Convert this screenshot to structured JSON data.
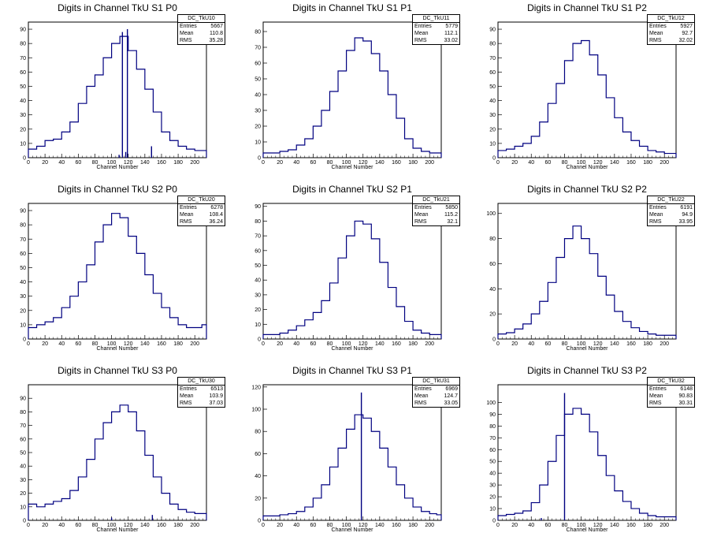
{
  "x_axis_label": "Channel Number",
  "panels": [
    {
      "id": "s1p0",
      "title": "Digits in Channel TkU S1 P0",
      "stats_name": "DC_TkU10",
      "entries": "5667",
      "mean": "110.8",
      "rms": "35.28"
    },
    {
      "id": "s1p1",
      "title": "Digits in Channel TkU S1 P1",
      "stats_name": "DC_TkU11",
      "entries": "5779",
      "mean": "112.1",
      "rms": "33.02"
    },
    {
      "id": "s1p2",
      "title": "Digits in Channel TkU S1 P2",
      "stats_name": "DC_TkU12",
      "entries": "5927",
      "mean": "92.7",
      "rms": "32.02"
    },
    {
      "id": "s2p0",
      "title": "Digits in Channel TkU S2 P0",
      "stats_name": "DC_TkU20",
      "entries": "6278",
      "mean": "108.4",
      "rms": "36.24"
    },
    {
      "id": "s2p1",
      "title": "Digits in Channel TkU S2 P1",
      "stats_name": "DC_TkU21",
      "entries": "5850",
      "mean": "115.2",
      "rms": "32.1"
    },
    {
      "id": "s2p2",
      "title": "Digits in Channel TkU S2 P2",
      "stats_name": "DC_TkU22",
      "entries": "6191",
      "mean": "94.9",
      "rms": "33.95"
    },
    {
      "id": "s3p0",
      "title": "Digits in Channel TkU S3 P0",
      "stats_name": "DC_TkU30",
      "entries": "6513",
      "mean": "103.9",
      "rms": "37.03"
    },
    {
      "id": "s3p1",
      "title": "Digits in Channel TkU S3 P1",
      "stats_name": "DC_TkU31",
      "entries": "6969",
      "mean": "124.7",
      "rms": "33.05"
    },
    {
      "id": "s3p2",
      "title": "Digits in Channel TkU S3 P2",
      "stats_name": "DC_TkU32",
      "entries": "6148",
      "mean": "90.83",
      "rms": "30.31"
    }
  ],
  "stat_labels": {
    "entries": "Entries",
    "mean": "Mean",
    "rms": "RMS"
  },
  "chart_data": [
    {
      "type": "histogram",
      "title": "Digits in Channel TkU S1 P0",
      "xlabel": "Channel Number",
      "ylabel": "",
      "xlim": [
        0,
        214
      ],
      "ylim": [
        0,
        95
      ],
      "x_ticks": [
        0,
        20,
        40,
        60,
        80,
        100,
        120,
        140,
        160,
        180,
        200
      ],
      "y_ticks": [
        0,
        10,
        20,
        30,
        40,
        50,
        60,
        70,
        80,
        90
      ],
      "bin_centers": [
        5,
        15,
        25,
        35,
        45,
        55,
        65,
        75,
        85,
        95,
        105,
        115,
        125,
        135,
        145,
        155,
        165,
        175,
        185,
        195,
        205,
        212
      ],
      "values": [
        6,
        8,
        12,
        13,
        18,
        25,
        38,
        50,
        58,
        70,
        80,
        85,
        75,
        62,
        48,
        32,
        18,
        12,
        8,
        6,
        5,
        5
      ],
      "spikes": [
        {
          "x": 109,
          "y": 2
        },
        {
          "x": 113,
          "y": 88
        },
        {
          "x": 117,
          "y": 4
        },
        {
          "x": 119,
          "y": 90
        },
        {
          "x": 148,
          "y": 8
        }
      ],
      "color": "#000080"
    },
    {
      "type": "histogram",
      "title": "Digits in Channel TkU S1 P1",
      "xlabel": "Channel Number",
      "ylabel": "",
      "xlim": [
        0,
        214
      ],
      "ylim": [
        0,
        86
      ],
      "x_ticks": [
        0,
        20,
        40,
        60,
        80,
        100,
        120,
        140,
        160,
        180,
        200
      ],
      "y_ticks": [
        0,
        10,
        20,
        30,
        40,
        50,
        60,
        70,
        80
      ],
      "bin_centers": [
        5,
        15,
        25,
        35,
        45,
        55,
        65,
        75,
        85,
        95,
        105,
        115,
        125,
        135,
        145,
        155,
        165,
        175,
        185,
        195,
        205,
        212
      ],
      "values": [
        3,
        3,
        4,
        5,
        8,
        12,
        20,
        30,
        42,
        55,
        68,
        76,
        74,
        66,
        55,
        40,
        25,
        12,
        6,
        4,
        3,
        3
      ],
      "spikes": [],
      "color": "#000080"
    },
    {
      "type": "histogram",
      "title": "Digits in Channel TkU S1 P2",
      "xlabel": "Channel Number",
      "ylabel": "",
      "xlim": [
        0,
        214
      ],
      "ylim": [
        0,
        95
      ],
      "x_ticks": [
        0,
        20,
        40,
        60,
        80,
        100,
        120,
        140,
        160,
        180,
        200
      ],
      "y_ticks": [
        0,
        10,
        20,
        30,
        40,
        50,
        60,
        70,
        80,
        90
      ],
      "bin_centers": [
        5,
        15,
        25,
        35,
        45,
        55,
        65,
        75,
        85,
        95,
        105,
        115,
        125,
        135,
        145,
        155,
        165,
        175,
        185,
        195,
        205,
        212
      ],
      "values": [
        5,
        6,
        8,
        10,
        15,
        25,
        38,
        52,
        68,
        80,
        82,
        72,
        58,
        42,
        28,
        18,
        12,
        8,
        5,
        4,
        3,
        3
      ],
      "spikes": [],
      "color": "#000080"
    },
    {
      "type": "histogram",
      "title": "Digits in Channel TkU S2 P0",
      "xlabel": "Channel Number",
      "ylabel": "",
      "xlim": [
        0,
        214
      ],
      "ylim": [
        0,
        95
      ],
      "x_ticks": [
        0,
        20,
        40,
        60,
        80,
        100,
        120,
        140,
        160,
        180,
        200
      ],
      "y_ticks": [
        0,
        10,
        20,
        30,
        40,
        50,
        60,
        70,
        80,
        90
      ],
      "bin_centers": [
        5,
        15,
        25,
        35,
        45,
        55,
        65,
        75,
        85,
        95,
        105,
        115,
        125,
        135,
        145,
        155,
        165,
        175,
        185,
        195,
        205,
        212
      ],
      "values": [
        8,
        10,
        12,
        15,
        22,
        30,
        40,
        52,
        68,
        80,
        88,
        85,
        72,
        60,
        45,
        32,
        22,
        15,
        10,
        8,
        8,
        10
      ],
      "spikes": [],
      "color": "#000080"
    },
    {
      "type": "histogram",
      "title": "Digits in Channel TkU S2 P1",
      "xlabel": "Channel Number",
      "ylabel": "",
      "xlim": [
        0,
        214
      ],
      "ylim": [
        0,
        92
      ],
      "x_ticks": [
        0,
        20,
        40,
        60,
        80,
        100,
        120,
        140,
        160,
        180,
        200
      ],
      "y_ticks": [
        0,
        10,
        20,
        30,
        40,
        50,
        60,
        70,
        80,
        90
      ],
      "bin_centers": [
        5,
        15,
        25,
        35,
        45,
        55,
        65,
        75,
        85,
        95,
        105,
        115,
        125,
        135,
        145,
        155,
        165,
        175,
        185,
        195,
        205,
        212
      ],
      "values": [
        3,
        3,
        4,
        6,
        9,
        13,
        18,
        26,
        38,
        55,
        70,
        80,
        78,
        68,
        52,
        35,
        22,
        12,
        6,
        4,
        3,
        3
      ],
      "spikes": [],
      "color": "#000080"
    },
    {
      "type": "histogram",
      "title": "Digits in Channel TkU S2 P2",
      "xlabel": "Channel Number",
      "ylabel": "",
      "xlim": [
        0,
        214
      ],
      "ylim": [
        0,
        108
      ],
      "x_ticks": [
        0,
        20,
        40,
        60,
        80,
        100,
        120,
        140,
        160,
        180,
        200
      ],
      "y_ticks": [
        0,
        20,
        40,
        60,
        80,
        100
      ],
      "bin_centers": [
        5,
        15,
        25,
        35,
        45,
        55,
        65,
        75,
        85,
        95,
        105,
        115,
        125,
        135,
        145,
        155,
        165,
        175,
        185,
        195,
        205,
        212
      ],
      "values": [
        4,
        5,
        8,
        12,
        20,
        30,
        45,
        65,
        80,
        90,
        80,
        68,
        50,
        35,
        22,
        14,
        9,
        6,
        4,
        3,
        3,
        3
      ],
      "spikes": [],
      "color": "#000080"
    },
    {
      "type": "histogram",
      "title": "Digits in Channel TkU S3 P0",
      "xlabel": "Channel Number",
      "ylabel": "",
      "xlim": [
        0,
        214
      ],
      "ylim": [
        0,
        100
      ],
      "x_ticks": [
        0,
        20,
        40,
        60,
        80,
        100,
        120,
        140,
        160,
        180,
        200
      ],
      "y_ticks": [
        0,
        10,
        20,
        30,
        40,
        50,
        60,
        70,
        80,
        90
      ],
      "bin_centers": [
        5,
        15,
        25,
        35,
        45,
        55,
        65,
        75,
        85,
        95,
        105,
        115,
        125,
        135,
        145,
        155,
        165,
        175,
        185,
        195,
        205,
        212
      ],
      "values": [
        12,
        10,
        12,
        14,
        16,
        22,
        32,
        45,
        60,
        72,
        80,
        85,
        80,
        66,
        48,
        32,
        20,
        12,
        8,
        6,
        5,
        5
      ],
      "spikes": [
        {
          "x": 100,
          "y": 2
        },
        {
          "x": 149,
          "y": 4
        }
      ],
      "color": "#000080"
    },
    {
      "type": "histogram",
      "title": "Digits in Channel TkU S3 P1",
      "xlabel": "Channel Number",
      "ylabel": "",
      "xlim": [
        0,
        214
      ],
      "ylim": [
        0,
        122
      ],
      "x_ticks": [
        0,
        20,
        40,
        60,
        80,
        100,
        120,
        140,
        160,
        180,
        200
      ],
      "y_ticks": [
        0,
        20,
        40,
        60,
        80,
        100,
        120
      ],
      "bin_centers": [
        5,
        15,
        25,
        35,
        45,
        55,
        65,
        75,
        85,
        95,
        105,
        115,
        125,
        135,
        145,
        155,
        165,
        175,
        185,
        195,
        205,
        212
      ],
      "values": [
        4,
        4,
        5,
        6,
        8,
        12,
        20,
        32,
        48,
        65,
        82,
        95,
        92,
        80,
        65,
        48,
        32,
        20,
        12,
        8,
        6,
        5
      ],
      "spikes": [
        {
          "x": 118,
          "y": 115
        }
      ],
      "color": "#000080"
    },
    {
      "type": "histogram",
      "title": "Digits in Channel TkU S3 P2",
      "xlabel": "Channel Number",
      "ylabel": "",
      "xlim": [
        0,
        214
      ],
      "ylim": [
        0,
        115
      ],
      "x_ticks": [
        0,
        20,
        40,
        60,
        80,
        100,
        120,
        140,
        160,
        180,
        200
      ],
      "y_ticks": [
        0,
        10,
        20,
        30,
        40,
        50,
        60,
        70,
        80,
        90,
        100
      ],
      "bin_centers": [
        5,
        15,
        25,
        35,
        45,
        55,
        65,
        75,
        85,
        95,
        105,
        115,
        125,
        135,
        145,
        155,
        165,
        175,
        185,
        195,
        205,
        212
      ],
      "values": [
        4,
        5,
        6,
        8,
        15,
        30,
        50,
        72,
        90,
        95,
        90,
        75,
        55,
        38,
        25,
        16,
        10,
        6,
        4,
        3,
        3,
        3
      ],
      "spikes": [
        {
          "x": 52,
          "y": 2
        },
        {
          "x": 80,
          "y": 108
        }
      ],
      "color": "#000080"
    }
  ]
}
